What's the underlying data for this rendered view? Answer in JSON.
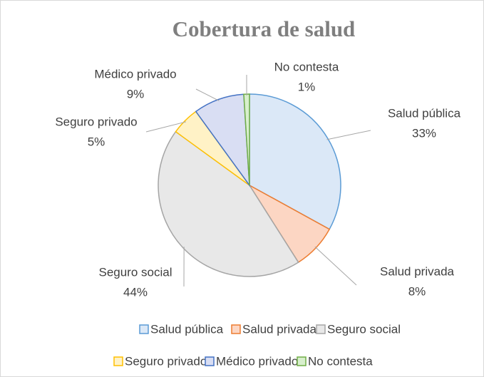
{
  "chart_data": {
    "type": "pie",
    "title": "Cobertura de salud",
    "categories": [
      "Salud pública",
      "Salud privada",
      "Seguro social",
      "Seguro privado",
      "Médico privado",
      "No contesta"
    ],
    "values": [
      33,
      8,
      44,
      5,
      9,
      1
    ],
    "value_labels": [
      "33%",
      "8%",
      "44%",
      "5%",
      "9%",
      "1%"
    ],
    "colors": [
      "#5b9bd5",
      "#ed7d31",
      "#a5a5a5",
      "#ffc000",
      "#4472c4",
      "#70ad47"
    ],
    "fills": [
      "#dbe8f7",
      "#fcd6c3",
      "#e8e8e8",
      "#fff2c6",
      "#d9def3",
      "#d8efcd"
    ],
    "legend": "bottom"
  }
}
